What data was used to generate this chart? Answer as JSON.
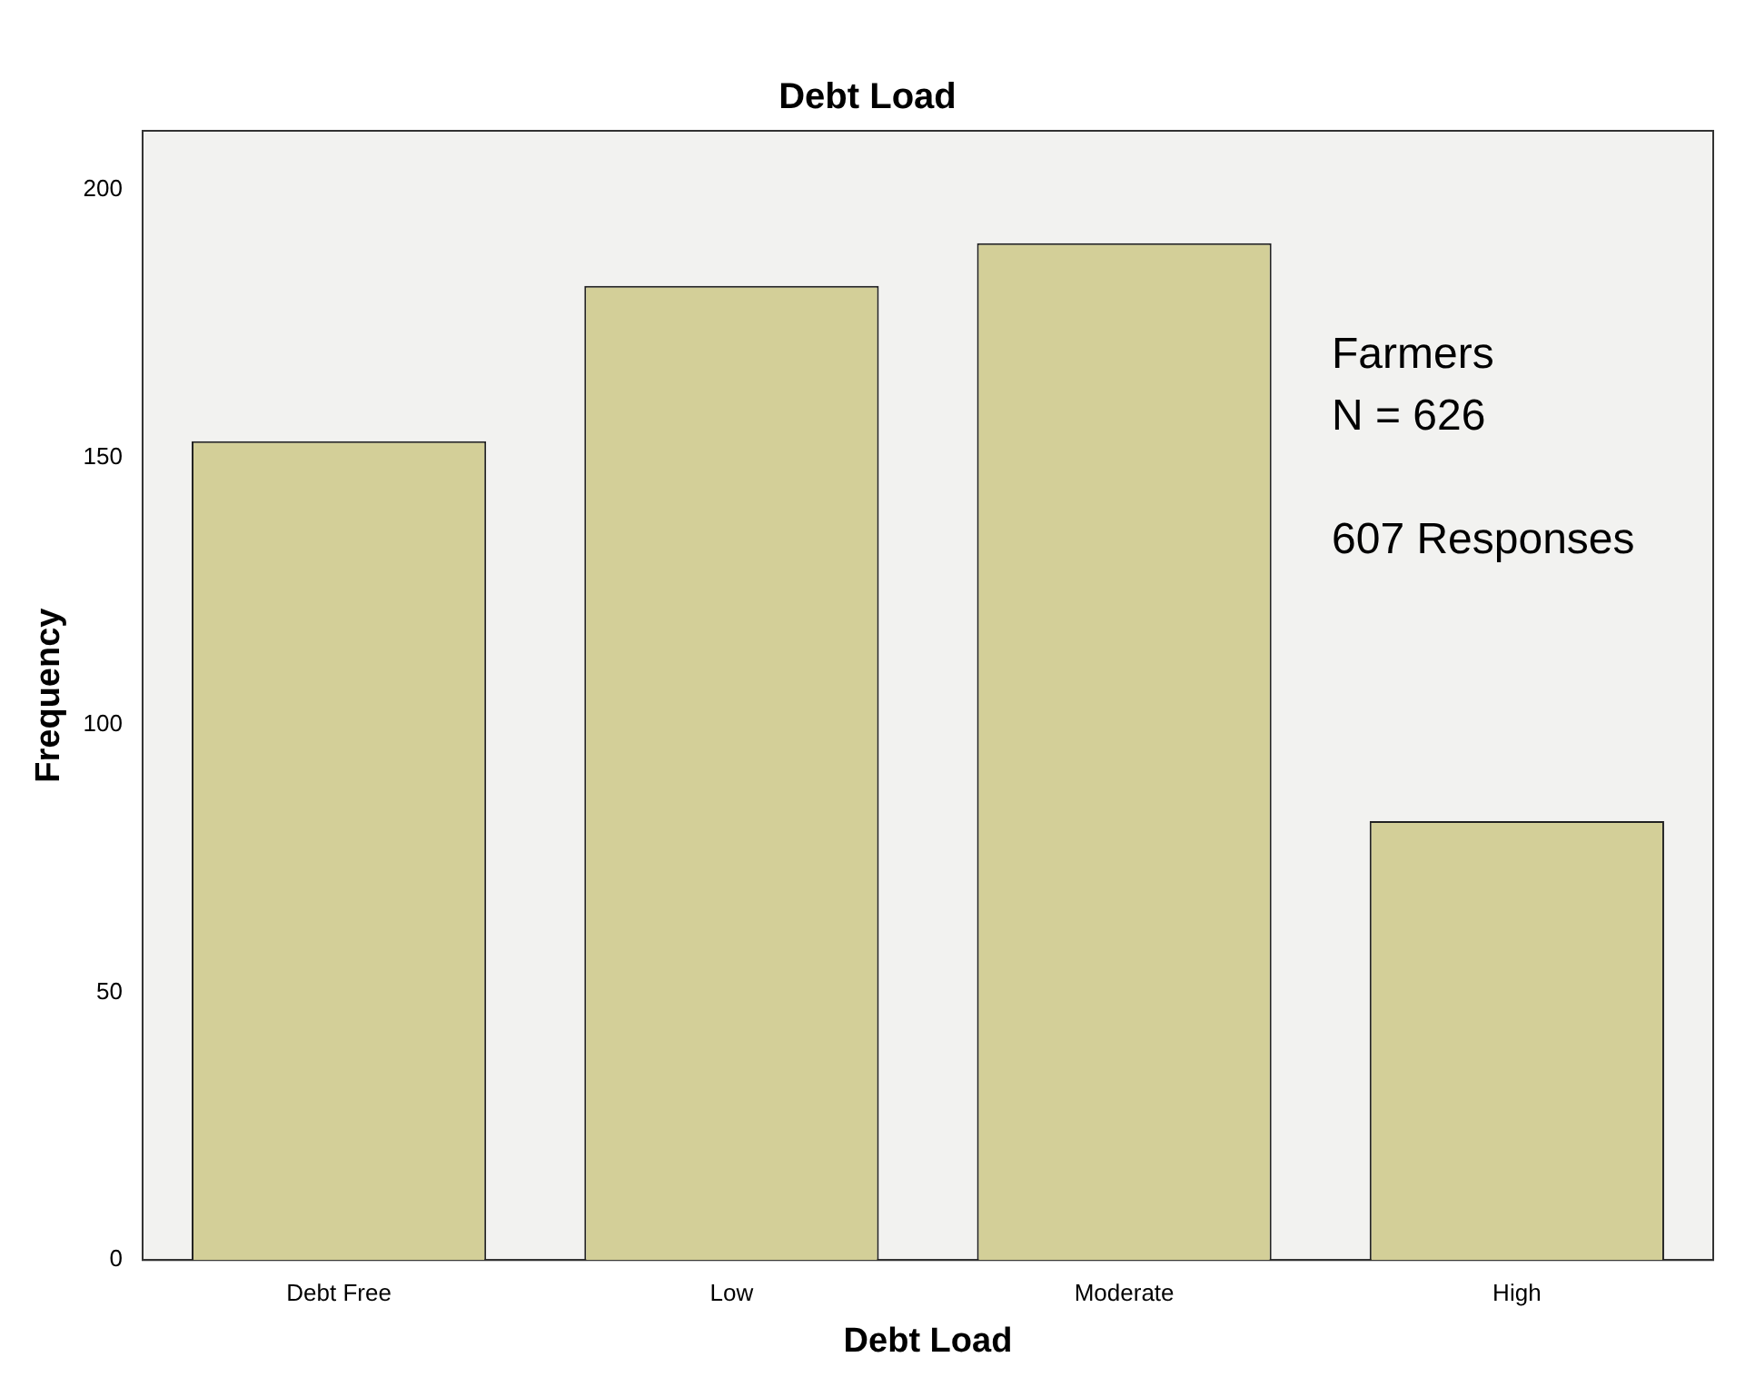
{
  "chart_data": {
    "type": "bar",
    "title": "Debt Load",
    "xlabel": "Debt Load",
    "ylabel": "Frequency",
    "categories": [
      "Debt Free",
      "Low",
      "Moderate",
      "High"
    ],
    "values": [
      153,
      182,
      190,
      82
    ],
    "color": "#d3cf98",
    "ylim": [
      0,
      211
    ],
    "yticks": [
      0,
      50,
      100,
      150,
      200
    ],
    "grid": false,
    "legend": false,
    "annotations": [
      "Farmers",
      "N = 626",
      "607 Responses"
    ]
  }
}
